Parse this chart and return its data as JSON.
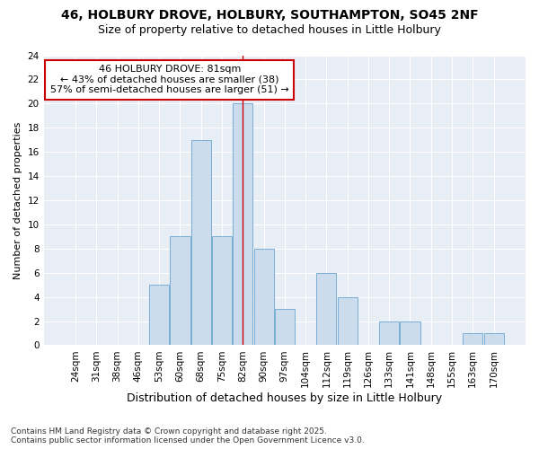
{
  "title_line1": "46, HOLBURY DROVE, HOLBURY, SOUTHAMPTON, SO45 2NF",
  "title_line2": "Size of property relative to detached houses in Little Holbury",
  "xlabel": "Distribution of detached houses by size in Little Holbury",
  "ylabel": "Number of detached properties",
  "categories": [
    "24sqm",
    "31sqm",
    "38sqm",
    "46sqm",
    "53sqm",
    "60sqm",
    "68sqm",
    "75sqm",
    "82sqm",
    "90sqm",
    "97sqm",
    "104sqm",
    "112sqm",
    "119sqm",
    "126sqm",
    "133sqm",
    "141sqm",
    "148sqm",
    "155sqm",
    "163sqm",
    "170sqm"
  ],
  "values": [
    0,
    0,
    0,
    0,
    5,
    9,
    17,
    9,
    20,
    8,
    3,
    0,
    6,
    4,
    0,
    2,
    2,
    0,
    0,
    1,
    1
  ],
  "bar_color": "#cddcec",
  "bar_edge_color": "#7aaed4",
  "vline_x": 8,
  "annotation_text": "46 HOLBURY DROVE: 81sqm\n← 43% of detached houses are smaller (38)\n57% of semi-detached houses are larger (51) →",
  "annotation_box_color": "#ffffff",
  "annotation_box_edge": "#cc0000",
  "vline_color": "#cc0000",
  "ylim": [
    0,
    24
  ],
  "yticks": [
    0,
    2,
    4,
    6,
    8,
    10,
    12,
    14,
    16,
    18,
    20,
    22,
    24
  ],
  "background_color": "#e8eef6",
  "footer": "Contains HM Land Registry data © Crown copyright and database right 2025.\nContains public sector information licensed under the Open Government Licence v3.0.",
  "title_fontsize": 10,
  "subtitle_fontsize": 9,
  "xlabel_fontsize": 9,
  "ylabel_fontsize": 8,
  "tick_fontsize": 7.5,
  "annotation_fontsize": 8,
  "footer_fontsize": 6.5
}
